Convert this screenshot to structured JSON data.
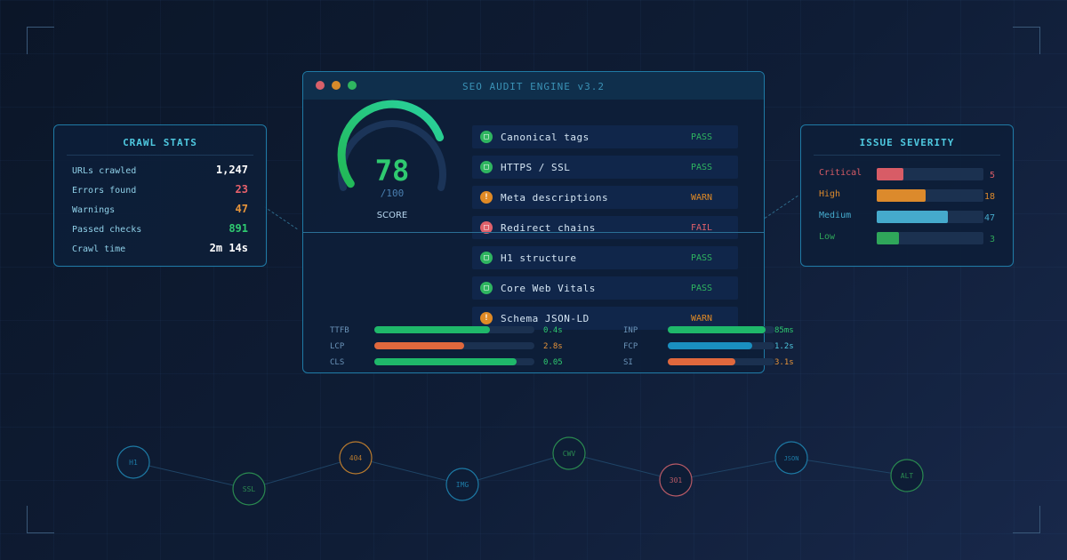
{
  "window": {
    "title": "SEO AUDIT ENGINE v3.2"
  },
  "score": {
    "value": "78",
    "max": "/100",
    "label": "SCORE",
    "fraction": 0.78,
    "color": "#2fca70"
  },
  "crawl_stats": {
    "title": "CRAWL STATS",
    "rows": [
      {
        "label": "URLs crawled",
        "value": "1,247",
        "color": "#ffffff"
      },
      {
        "label": "Errors found",
        "value": "23",
        "color": "#e8616b"
      },
      {
        "label": "Warnings",
        "value": "47",
        "color": "#e8953a"
      },
      {
        "label": "Passed checks",
        "value": "891",
        "color": "#2fca70"
      },
      {
        "label": "Crawl time",
        "value": "2m 14s",
        "color": "#ffffff"
      }
    ]
  },
  "checks": [
    {
      "name": "Canonical tags",
      "status": "PASS",
      "icon": "check-icon",
      "glyph": "□",
      "color": "#2fb560"
    },
    {
      "name": "HTTPS / SSL",
      "status": "PASS",
      "icon": "check-icon",
      "glyph": "□",
      "color": "#2fb560"
    },
    {
      "name": "Meta descriptions",
      "status": "WARN",
      "icon": "warning-icon",
      "glyph": "!",
      "color": "#e08a25"
    },
    {
      "name": "Redirect chains",
      "status": "FAIL",
      "icon": "fail-icon",
      "glyph": "□",
      "color": "#e0616b"
    },
    {
      "name": "H1 structure",
      "status": "PASS",
      "icon": "check-icon",
      "glyph": "□",
      "color": "#2fb560"
    },
    {
      "name": "Core Web Vitals",
      "status": "PASS",
      "icon": "check-icon",
      "glyph": "□",
      "color": "#2fb560"
    },
    {
      "name": "Schema JSON-LD",
      "status": "WARN",
      "icon": "warning-icon",
      "glyph": "!",
      "color": "#e08a25"
    }
  ],
  "metrics": [
    {
      "label": "TTFB",
      "value": "0.4s",
      "fraction": 0.72,
      "color": "#1fb86a",
      "text_color": "#2fca70"
    },
    {
      "label": "LCP",
      "value": "2.8s",
      "fraction": 0.56,
      "color": "#e0683d",
      "text_color": "#e8953a"
    },
    {
      "label": "CLS",
      "value": "0.05",
      "fraction": 0.89,
      "color": "#1fb86a",
      "text_color": "#2fca70"
    },
    {
      "label": "INP",
      "value": "85ms",
      "fraction": 0.92,
      "color": "#1fb86a",
      "text_color": "#2fca70"
    },
    {
      "label": "FCP",
      "value": "1.2s",
      "fraction": 0.79,
      "color": "#1a8fc0",
      "text_color": "#4fc9e0"
    },
    {
      "label": "SI",
      "value": "3.1s",
      "fraction": 0.63,
      "color": "#e0683d",
      "text_color": "#e8953a"
    }
  ],
  "issue_severity": {
    "title": "ISSUE SEVERITY",
    "rows": [
      {
        "label": "Critical",
        "count": "5",
        "fraction": 0.25,
        "color": "#d85c66"
      },
      {
        "label": "High",
        "count": "18",
        "fraction": 0.46,
        "color": "#dc8a2c"
      },
      {
        "label": "Medium",
        "count": "47",
        "fraction": 0.67,
        "color": "#45aacc"
      },
      {
        "label": "Low",
        "count": "3",
        "fraction": 0.21,
        "color": "#2fa65a"
      }
    ]
  },
  "nodes": [
    {
      "label": "H1",
      "color": "#1d7aa5"
    },
    {
      "label": "SSL",
      "color": "#2a8a50"
    },
    {
      "label": "404",
      "color": "#b87a2e"
    },
    {
      "label": "IMG",
      "color": "#1d7aa5"
    },
    {
      "label": "CWV",
      "color": "#2a8a50"
    },
    {
      "label": "301",
      "color": "#b85a66"
    },
    {
      "label": "JSON",
      "color": "#1d7aa5"
    },
    {
      "label": "ALT",
      "color": "#2a8a50"
    }
  ]
}
